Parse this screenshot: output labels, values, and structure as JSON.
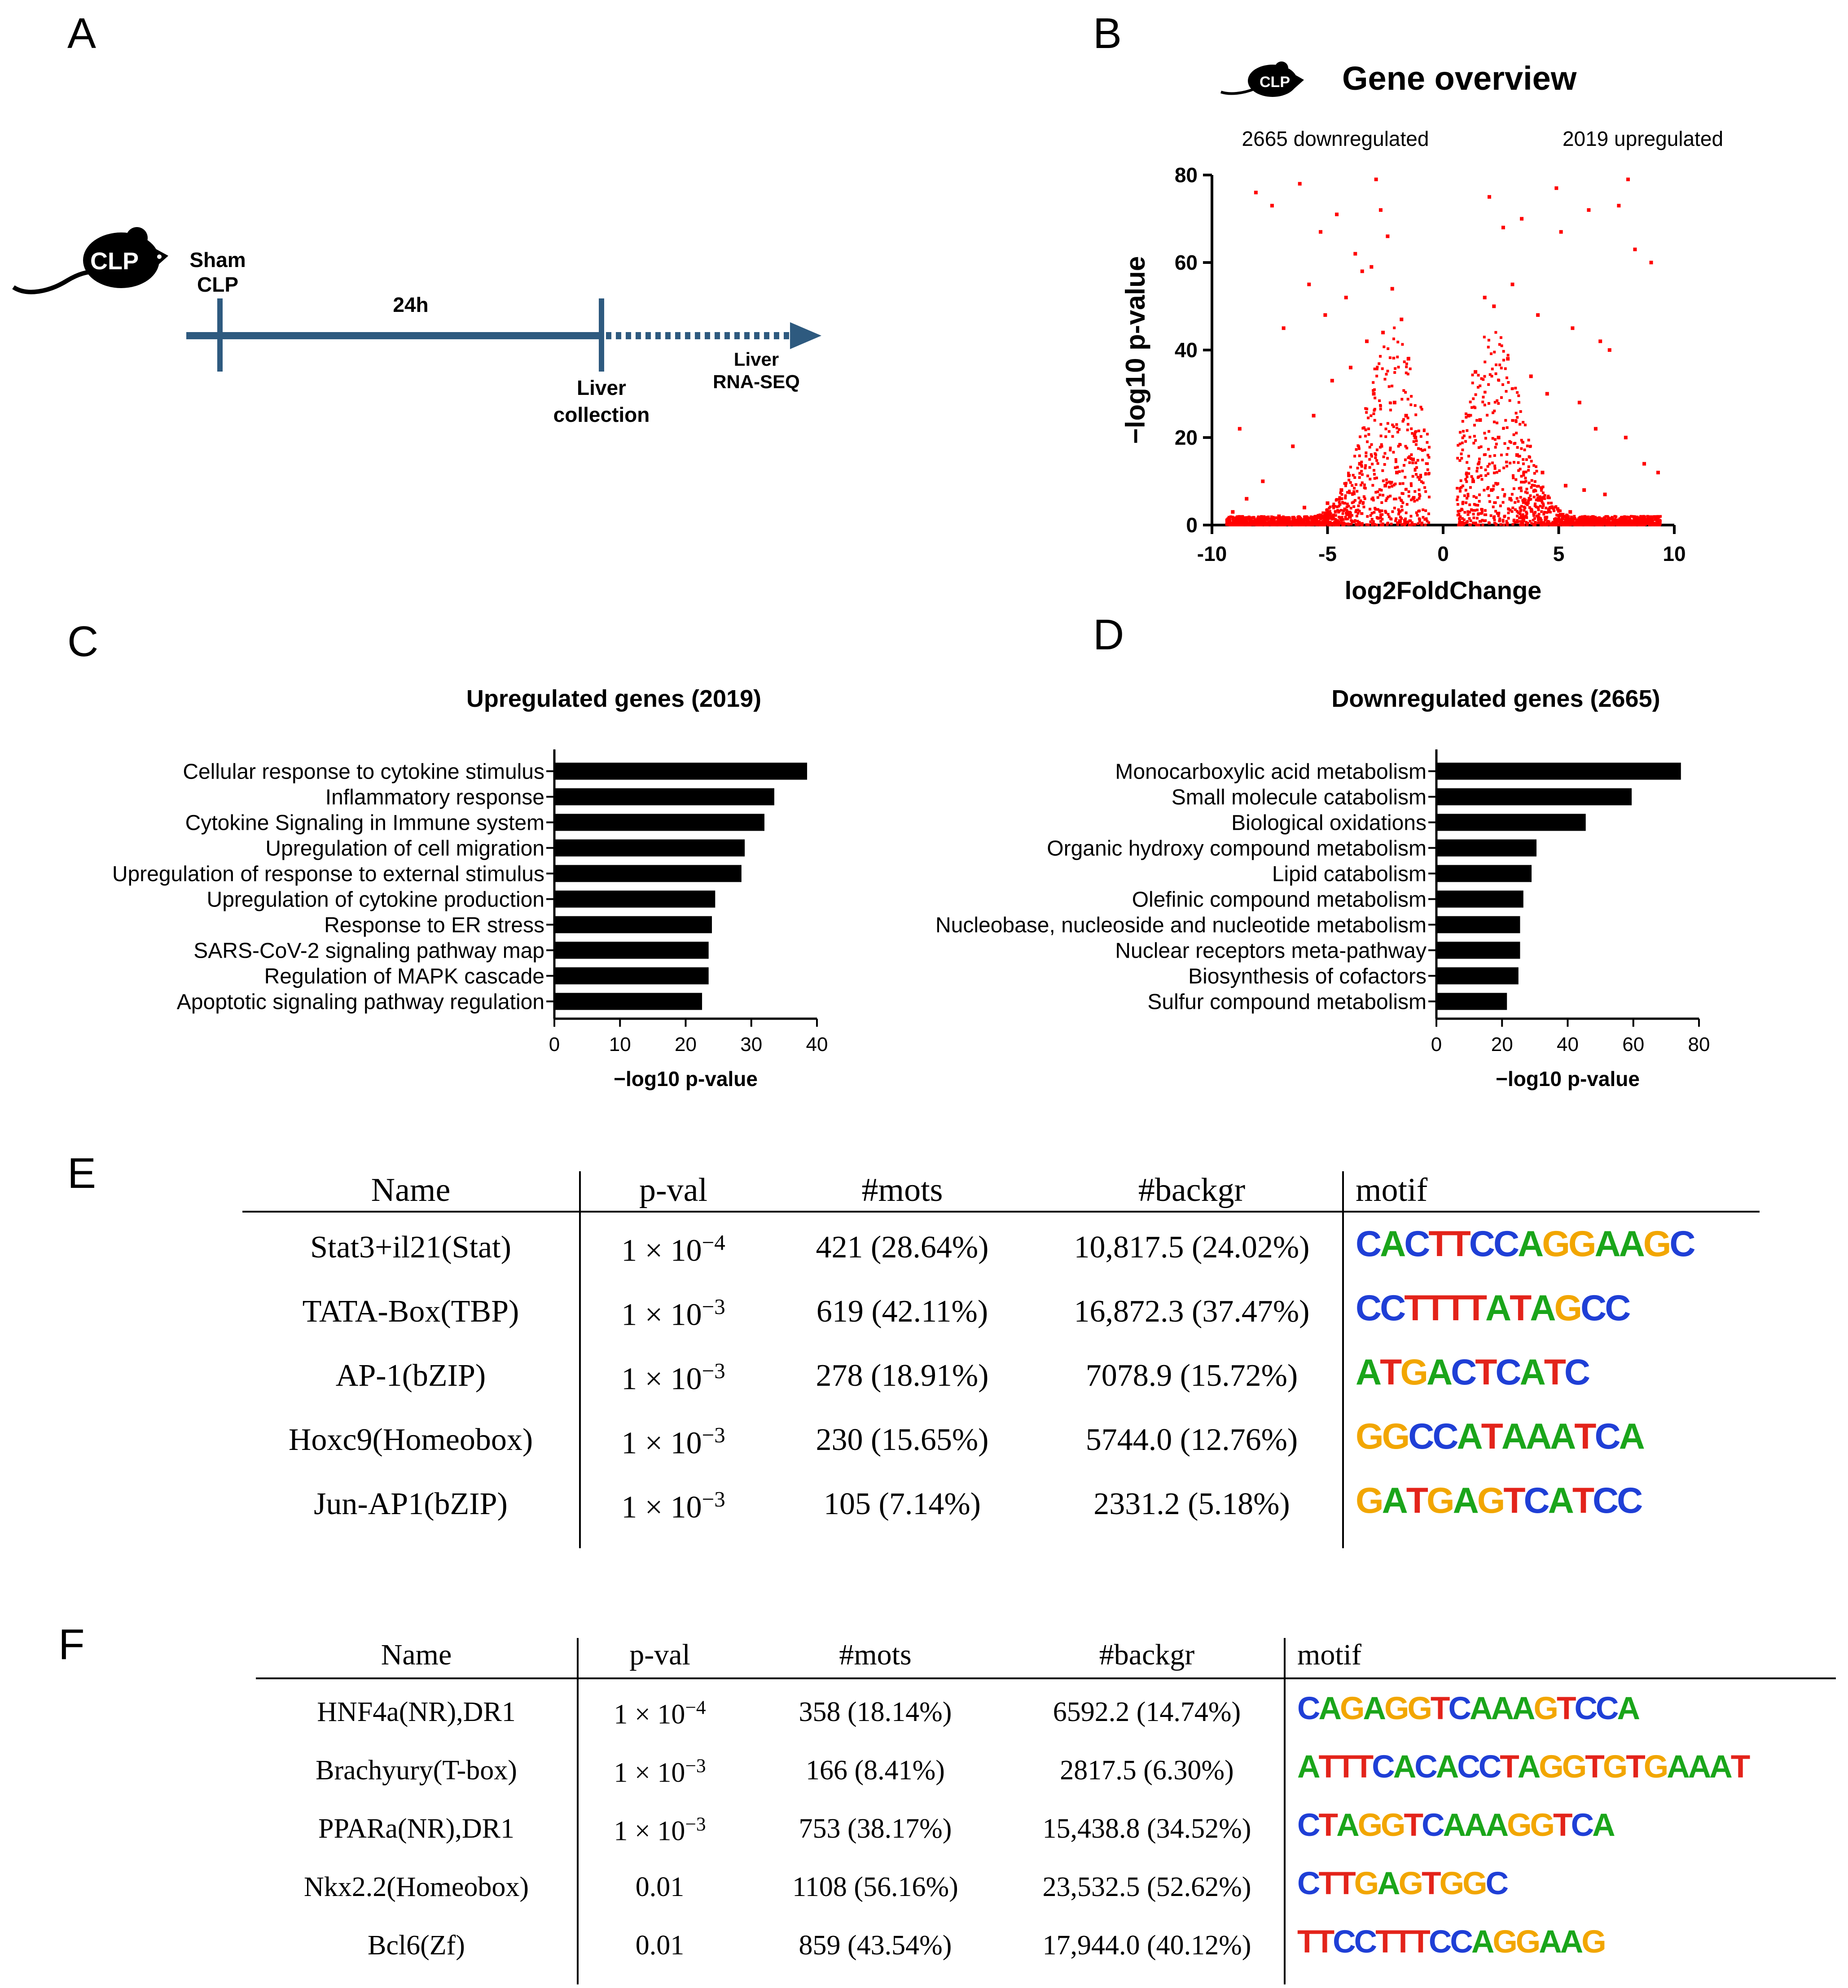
{
  "panels": {
    "a": "A",
    "b": "B",
    "c": "C",
    "d": "D",
    "e": "E",
    "f": "F"
  },
  "panel_a": {
    "mouse_label": "CLP",
    "start_top": "Sham",
    "start_bottom": "CLP",
    "duration": "24h",
    "collection_top": "Liver",
    "collection_bottom": "collection",
    "end_top": "Liver",
    "end_bottom": "RNA-SEQ",
    "timeline_color": "#2e5a7f"
  },
  "panel_b": {
    "mouse_label": "CLP",
    "title": "Gene overview",
    "down_label": "2665 downregulated",
    "up_label": "2019 upregulated",
    "point_color": "#ff0000"
  },
  "chart_data": [
    {
      "type": "scatter",
      "title": "Gene overview",
      "xlabel": "log2FoldChange",
      "ylabel": "−log10 p-value",
      "xlim": [
        -10,
        10
      ],
      "ylim": [
        0,
        80
      ],
      "xticks": [
        "-10",
        "-5",
        "0",
        "5",
        "10"
      ],
      "yticks": [
        "0",
        "20",
        "40",
        "60",
        "80"
      ],
      "series": [
        {
          "name": "2665 downregulated",
          "count": 2665,
          "x": [
            -8.1,
            -6.2,
            -7.4,
            -5.3,
            -3.8,
            -2.9,
            -2.7,
            -2.4,
            -3.1,
            -4.6,
            -5.8,
            -8.8,
            -6.9,
            -5.1,
            -4.2,
            -3.5,
            -2.2,
            -1.8,
            -1.5,
            -1.2,
            -2.6,
            -3.3,
            -4.0,
            -4.8,
            -5.6,
            -6.5,
            -7.8,
            -8.5,
            -9.1,
            -3.0,
            -2.1,
            -1.6,
            -1.3,
            -2.0,
            -2.5,
            -3.6,
            -4.4,
            -5.0,
            -6.0,
            -7.1
          ],
          "y": [
            76,
            78,
            73,
            67,
            62,
            79,
            72,
            66,
            59,
            71,
            55,
            22,
            45,
            48,
            52,
            58,
            54,
            47,
            38,
            20,
            44,
            42,
            36,
            33,
            25,
            18,
            10,
            6,
            3,
            30,
            28,
            25,
            15,
            12,
            9,
            14,
            8,
            5,
            4,
            2
          ]
        }
      ]
    },
    {
      "type": "scatter",
      "title": "Gene overview",
      "series": [
        {
          "name": "2019 upregulated",
          "count": 2019,
          "x": [
            8.0,
            4.9,
            2.0,
            3.4,
            2.6,
            5.1,
            6.3,
            7.6,
            8.3,
            9.0,
            1.8,
            2.2,
            3.0,
            4.1,
            5.6,
            6.8,
            7.2,
            1.4,
            1.1,
            2.8,
            3.8,
            4.5,
            5.9,
            6.6,
            7.9,
            8.7,
            9.3,
            1.6,
            2.4,
            3.2,
            4.3,
            5.3,
            6.1,
            7.0,
            1.3,
            2.1,
            2.9,
            3.6,
            4.7,
            5.5
          ],
          "y": [
            79,
            77,
            75,
            70,
            68,
            67,
            72,
            73,
            63,
            60,
            52,
            50,
            55,
            48,
            45,
            42,
            40,
            35,
            25,
            38,
            34,
            30,
            28,
            22,
            20,
            14,
            12,
            24,
            20,
            16,
            12,
            9,
            8,
            7,
            10,
            8,
            6,
            5,
            4,
            3
          ]
        }
      ]
    },
    {
      "type": "bar",
      "orientation": "horizontal",
      "title": "Upregulated genes (2019)",
      "xlabel": "−log10 p-value",
      "xlim": [
        0,
        40
      ],
      "xticks": [
        "0",
        "10",
        "20",
        "30",
        "40"
      ],
      "categories": [
        "Cellular response to cytokine stimulus",
        "Inflammatory response",
        "Cytokine Signaling in Immune system",
        "Upregulation of cell migration",
        "Upregulation of response to external stimulus",
        "Upregulation of cytokine production",
        "Response to ER stress",
        "SARS-CoV-2 signaling pathway map",
        "Regulation of MAPK cascade",
        "Apoptotic signaling pathway regulation"
      ],
      "values": [
        38.5,
        33.5,
        32,
        29,
        28.5,
        24.5,
        24,
        23.5,
        23.5,
        22.5
      ]
    },
    {
      "type": "bar",
      "orientation": "horizontal",
      "title": "Downregulated genes (2665)",
      "xlabel": "−log10 p-value",
      "xlim": [
        0,
        80
      ],
      "xticks": [
        "0",
        "20",
        "40",
        "60",
        "80"
      ],
      "categories": [
        "Monocarboxylic acid metabolism",
        "Small molecule catabolism",
        "Biological oxidations",
        "Organic hydroxy compound metabolism",
        "Lipid catabolism",
        "Olefinic compound metabolism",
        "Nucleobase, nucleoside and nucleotide metabolism",
        "Nuclear receptors meta-pathway",
        "Biosynthesis of cofactors",
        "Sulfur compound metabolism"
      ],
      "values": [
        74.5,
        59.5,
        45.5,
        30.5,
        29,
        26.5,
        25.5,
        25.5,
        25,
        21.5
      ]
    }
  ],
  "table_e": {
    "headers": [
      "Name",
      "p-val",
      "#mots",
      "#backgr",
      "motif"
    ],
    "rows": [
      {
        "name": "Stat3+il21(Stat)",
        "pval": "1 × 10",
        "exp": "−4",
        "mots": "421 (28.64%)",
        "backgr": "10,817.5 (24.02%)",
        "motif": "CACTTCCAGGAAGC"
      },
      {
        "name": "TATA-Box(TBP)",
        "pval": "1 × 10",
        "exp": "−3",
        "mots": "619 (42.11%)",
        "backgr": "16,872.3 (37.47%)",
        "motif": "CCTTTTATAGCC"
      },
      {
        "name": "AP-1(bZIP)",
        "pval": "1 × 10",
        "exp": "−3",
        "mots": "278 (18.91%)",
        "backgr": "7078.9 (15.72%)",
        "motif": "ATGACTCATC"
      },
      {
        "name": "Hoxc9(Homeobox)",
        "pval": "1 × 10",
        "exp": "−3",
        "mots": "230 (15.65%)",
        "backgr": "5744.0 (12.76%)",
        "motif": "GGCCATAAATCA"
      },
      {
        "name": "Jun-AP1(bZIP)",
        "pval": "1 × 10",
        "exp": "−3",
        "mots": "105 (7.14%)",
        "backgr": "2331.2 (5.18%)",
        "motif": "GATGAGTCATCC"
      }
    ]
  },
  "table_f": {
    "headers": [
      "Name",
      "p-val",
      "#mots",
      "#backgr",
      "motif"
    ],
    "rows": [
      {
        "name": "HNF4a(NR),DR1",
        "pval": "1 × 10",
        "exp": "−4",
        "mots": "358 (18.14%)",
        "backgr": "6592.2 (14.74%)",
        "motif": "CAGAGGTCAAAGTCCA"
      },
      {
        "name": "Brachyury(T-box)",
        "pval": "1 × 10",
        "exp": "−3",
        "mots": "166 (8.41%)",
        "backgr": "2817.5 (6.30%)",
        "motif": "ATTTCACACCTAGGTGTGAAAT"
      },
      {
        "name": "PPARa(NR),DR1",
        "pval": "1 × 10",
        "exp": "−3",
        "mots": "753 (38.17%)",
        "backgr": "15,438.8 (34.52%)",
        "motif": "CTAGGTCAAAGGTCA"
      },
      {
        "name": "Nkx2.2(Homeobox)",
        "pval": "0.01",
        "exp": "",
        "mots": "1108 (56.16%)",
        "backgr": "23,532.5 (52.62%)",
        "motif": "CTTGAGTGGC"
      },
      {
        "name": "Bcl6(Zf)",
        "pval": "0.01",
        "exp": "",
        "mots": "859 (43.54%)",
        "backgr": "17,944.0 (40.12%)",
        "motif": "TTCCTTTCCAGGAAG"
      }
    ]
  }
}
